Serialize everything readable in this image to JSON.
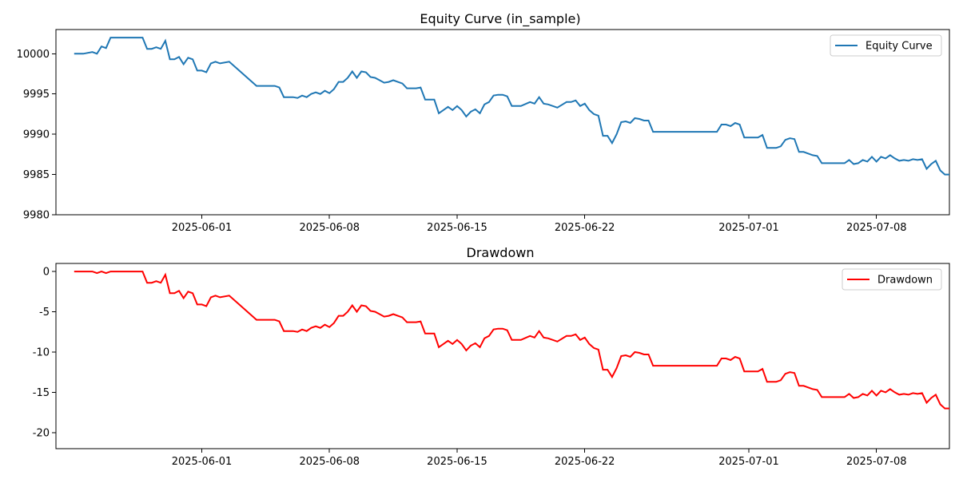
{
  "chart_data": [
    {
      "type": "line",
      "title": "Equity Curve (in_sample)",
      "xlabel": "",
      "ylabel": "",
      "x_range": [
        "2025-05-24",
        "2025-07-12"
      ],
      "ylim": [
        9980,
        10003
      ],
      "x_ticks": [
        "2025-06-01",
        "2025-06-08",
        "2025-06-15",
        "2025-06-22",
        "2025-07-01",
        "2025-07-08"
      ],
      "y_ticks": [
        9980,
        9985,
        9990,
        9995,
        10000
      ],
      "grid": false,
      "legend": "top-right",
      "series": [
        {
          "name": "Equity Curve",
          "color": "#1f77b4",
          "points": [
            [
              "2025-05-25",
              10000.0
            ],
            [
              "2025-05-25T12:00",
              10000.0
            ],
            [
              "2025-05-26",
              10000.2
            ],
            [
              "2025-05-26T06:00",
              10000.0
            ],
            [
              "2025-05-26T12:00",
              10000.9
            ],
            [
              "2025-05-26T18:00",
              10000.7
            ],
            [
              "2025-05-27",
              10002.0
            ],
            [
              "2025-05-28",
              10002.0
            ],
            [
              "2025-05-28T06:00",
              10002.0
            ],
            [
              "2025-05-28T12:00",
              10002.0
            ],
            [
              "2025-05-28T18:00",
              10002.0
            ],
            [
              "2025-05-29",
              10000.6
            ],
            [
              "2025-05-29T06:00",
              10000.6
            ],
            [
              "2025-05-29T12:00",
              10000.8
            ],
            [
              "2025-05-29T18:00",
              10000.6
            ],
            [
              "2025-05-30",
              10001.6
            ],
            [
              "2025-05-30T06:00",
              9999.3
            ],
            [
              "2025-05-30T12:00",
              9999.3
            ],
            [
              "2025-05-30T18:00",
              9999.6
            ],
            [
              "2025-05-31",
              9998.7
            ],
            [
              "2025-05-31T06:00",
              9999.5
            ],
            [
              "2025-05-31T12:00",
              9999.3
            ],
            [
              "2025-05-31T18:00",
              9997.9
            ],
            [
              "2025-06-01",
              9997.9
            ],
            [
              "2025-06-01T06:00",
              9997.7
            ],
            [
              "2025-06-01T12:00",
              9998.8
            ],
            [
              "2025-06-01T18:00",
              9999.0
            ],
            [
              "2025-06-02",
              9998.8
            ],
            [
              "2025-06-02T12:00",
              9999.0
            ],
            [
              "2025-06-03",
              9998.0
            ],
            [
              "2025-06-03T12:00",
              9997.0
            ],
            [
              "2025-06-04",
              9996.0
            ],
            [
              "2025-06-05",
              9996.0
            ],
            [
              "2025-06-05T06:00",
              9995.8
            ],
            [
              "2025-06-05T12:00",
              9994.6
            ],
            [
              "2025-06-06",
              9994.6
            ],
            [
              "2025-06-06T06:00",
              9994.5
            ],
            [
              "2025-06-06T12:00",
              9994.8
            ],
            [
              "2025-06-06T18:00",
              9994.6
            ],
            [
              "2025-06-07",
              9995.0
            ],
            [
              "2025-06-07T06:00",
              9995.2
            ],
            [
              "2025-06-07T12:00",
              9995.0
            ],
            [
              "2025-06-07T18:00",
              9995.4
            ],
            [
              "2025-06-08",
              9995.1
            ],
            [
              "2025-06-08T06:00",
              9995.6
            ],
            [
              "2025-06-08T12:00",
              9996.5
            ],
            [
              "2025-06-08T18:00",
              9996.5
            ],
            [
              "2025-06-09",
              9997.0
            ],
            [
              "2025-06-09T06:00",
              9997.8
            ],
            [
              "2025-06-09T12:00",
              9997.0
            ],
            [
              "2025-06-09T18:00",
              9997.8
            ],
            [
              "2025-06-10",
              9997.7
            ],
            [
              "2025-06-10T06:00",
              9997.1
            ],
            [
              "2025-06-10T12:00",
              9997.0
            ],
            [
              "2025-06-10T18:00",
              9996.7
            ],
            [
              "2025-06-11",
              9996.4
            ],
            [
              "2025-06-11T06:00",
              9996.5
            ],
            [
              "2025-06-11T12:00",
              9996.7
            ],
            [
              "2025-06-11T18:00",
              9996.5
            ],
            [
              "2025-06-12",
              9996.3
            ],
            [
              "2025-06-12T06:00",
              9995.7
            ],
            [
              "2025-06-12T12:00",
              9995.7
            ],
            [
              "2025-06-12T18:00",
              9995.7
            ],
            [
              "2025-06-13",
              9995.8
            ],
            [
              "2025-06-13T06:00",
              9994.3
            ],
            [
              "2025-06-13T12:00",
              9994.3
            ],
            [
              "2025-06-13T18:00",
              9994.3
            ],
            [
              "2025-06-14",
              9992.6
            ],
            [
              "2025-06-14T06:00",
              9993.0
            ],
            [
              "2025-06-14T12:00",
              9993.4
            ],
            [
              "2025-06-14T18:00",
              9993.0
            ],
            [
              "2025-06-15",
              9993.5
            ],
            [
              "2025-06-15T06:00",
              9993.0
            ],
            [
              "2025-06-15T12:00",
              9992.2
            ],
            [
              "2025-06-15T18:00",
              9992.8
            ],
            [
              "2025-06-16",
              9993.1
            ],
            [
              "2025-06-16T06:00",
              9992.6
            ],
            [
              "2025-06-16T12:00",
              9993.7
            ],
            [
              "2025-06-16T18:00",
              9994.0
            ],
            [
              "2025-06-17",
              9994.8
            ],
            [
              "2025-06-17T06:00",
              9994.9
            ],
            [
              "2025-06-17T12:00",
              9994.9
            ],
            [
              "2025-06-17T18:00",
              9994.7
            ],
            [
              "2025-06-18",
              9993.5
            ],
            [
              "2025-06-18T12:00",
              9993.5
            ],
            [
              "2025-06-19",
              9994.0
            ],
            [
              "2025-06-19T06:00",
              9993.8
            ],
            [
              "2025-06-19T12:00",
              9994.6
            ],
            [
              "2025-06-19T18:00",
              9993.8
            ],
            [
              "2025-06-20",
              9993.7
            ],
            [
              "2025-06-20T12:00",
              9993.3
            ],
            [
              "2025-06-21",
              9994.0
            ],
            [
              "2025-06-21T06:00",
              9994.0
            ],
            [
              "2025-06-21T12:00",
              9994.2
            ],
            [
              "2025-06-21T18:00",
              9993.5
            ],
            [
              "2025-06-22",
              9993.8
            ],
            [
              "2025-06-22T06:00",
              9993.0
            ],
            [
              "2025-06-22T12:00",
              9992.5
            ],
            [
              "2025-06-22T18:00",
              9992.3
            ],
            [
              "2025-06-23",
              9989.8
            ],
            [
              "2025-06-23T06:00",
              9989.8
            ],
            [
              "2025-06-23T12:00",
              9988.9
            ],
            [
              "2025-06-23T18:00",
              9990.0
            ],
            [
              "2025-06-24",
              9991.5
            ],
            [
              "2025-06-24T06:00",
              9991.6
            ],
            [
              "2025-06-24T12:00",
              9991.4
            ],
            [
              "2025-06-24T18:00",
              9992.0
            ],
            [
              "2025-06-25",
              9991.9
            ],
            [
              "2025-06-25T06:00",
              9991.7
            ],
            [
              "2025-06-25T12:00",
              9991.7
            ],
            [
              "2025-06-25T18:00",
              9990.3
            ],
            [
              "2025-06-26",
              9990.3
            ],
            [
              "2025-06-27",
              9990.3
            ],
            [
              "2025-06-28",
              9990.3
            ],
            [
              "2025-06-29",
              9990.3
            ],
            [
              "2025-06-29T06:00",
              9990.3
            ],
            [
              "2025-06-29T12:00",
              9991.2
            ],
            [
              "2025-06-29T18:00",
              9991.2
            ],
            [
              "2025-06-30",
              9991.0
            ],
            [
              "2025-06-30T06:00",
              9991.4
            ],
            [
              "2025-06-30T12:00",
              9991.2
            ],
            [
              "2025-06-30T18:00",
              9989.6
            ],
            [
              "2025-07-01",
              9989.6
            ],
            [
              "2025-07-01T12:00",
              9989.6
            ],
            [
              "2025-07-01T18:00",
              9989.9
            ],
            [
              "2025-07-02",
              9988.3
            ],
            [
              "2025-07-02T12:00",
              9988.3
            ],
            [
              "2025-07-02T18:00",
              9988.5
            ],
            [
              "2025-07-03",
              9989.3
            ],
            [
              "2025-07-03T06:00",
              9989.5
            ],
            [
              "2025-07-03T12:00",
              9989.4
            ],
            [
              "2025-07-03T18:00",
              9987.8
            ],
            [
              "2025-07-04",
              9987.8
            ],
            [
              "2025-07-04T06:00",
              9987.6
            ],
            [
              "2025-07-04T12:00",
              9987.4
            ],
            [
              "2025-07-04T18:00",
              9987.3
            ],
            [
              "2025-07-05",
              9986.4
            ],
            [
              "2025-07-05T12:00",
              9986.4
            ],
            [
              "2025-07-06",
              9986.4
            ],
            [
              "2025-07-06T06:00",
              9986.4
            ],
            [
              "2025-07-06T12:00",
              9986.8
            ],
            [
              "2025-07-06T18:00",
              9986.3
            ],
            [
              "2025-07-07",
              9986.4
            ],
            [
              "2025-07-07T06:00",
              9986.8
            ],
            [
              "2025-07-07T12:00",
              9986.6
            ],
            [
              "2025-07-07T18:00",
              9987.2
            ],
            [
              "2025-07-08",
              9986.6
            ],
            [
              "2025-07-08T06:00",
              9987.2
            ],
            [
              "2025-07-08T12:00",
              9987.0
            ],
            [
              "2025-07-08T18:00",
              9987.4
            ],
            [
              "2025-07-09",
              9987.0
            ],
            [
              "2025-07-09T06:00",
              9986.7
            ],
            [
              "2025-07-09T12:00",
              9986.8
            ],
            [
              "2025-07-09T18:00",
              9986.7
            ],
            [
              "2025-07-10",
              9986.9
            ],
            [
              "2025-07-10T06:00",
              9986.8
            ],
            [
              "2025-07-10T12:00",
              9986.9
            ],
            [
              "2025-07-10T18:00",
              9985.7
            ],
            [
              "2025-07-11",
              9986.3
            ],
            [
              "2025-07-11T06:00",
              9986.7
            ],
            [
              "2025-07-11T12:00",
              9985.5
            ],
            [
              "2025-07-11T18:00",
              9985.0
            ],
            [
              "2025-07-12",
              9985.0
            ]
          ]
        }
      ]
    },
    {
      "type": "line",
      "title": "Drawdown",
      "xlabel": "",
      "ylabel": "",
      "x_range": [
        "2025-05-24",
        "2025-07-12"
      ],
      "ylim": [
        -22,
        1
      ],
      "x_ticks": [
        "2025-06-01",
        "2025-06-08",
        "2025-06-15",
        "2025-06-22",
        "2025-07-01",
        "2025-07-08"
      ],
      "y_ticks": [
        -20,
        -15,
        -10,
        -5,
        0
      ],
      "grid": false,
      "legend": "top-right",
      "series": [
        {
          "name": "Drawdown",
          "color": "#ff0000",
          "points": []
        }
      ]
    }
  ]
}
